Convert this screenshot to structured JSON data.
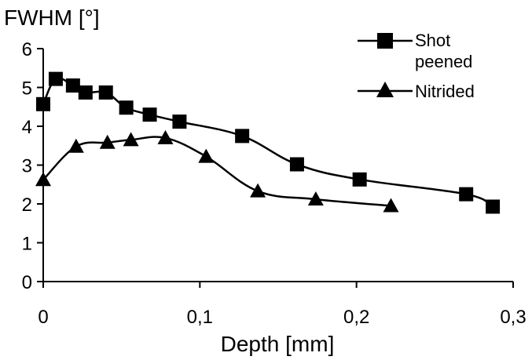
{
  "chart_data": {
    "type": "line",
    "ylabel": "FWHM [°]",
    "xlabel": "Depth [mm]",
    "xlim": [
      0,
      0.3
    ],
    "ylim": [
      0,
      6
    ],
    "x_ticks": [
      "0",
      "0,1",
      "0,2",
      "0,3"
    ],
    "y_ticks": [
      "0",
      "1",
      "2",
      "3",
      "4",
      "5",
      "6"
    ],
    "grid": false,
    "legend_position": "top-right",
    "legend": [
      {
        "label_lines": [
          "Shot",
          "peened"
        ],
        "marker": "square"
      },
      {
        "label_lines": [
          "Nitrided"
        ],
        "marker": "triangle"
      }
    ],
    "series": [
      {
        "name": "Shot peened",
        "marker": "square",
        "color": "#000000",
        "x": [
          0.0,
          0.008,
          0.019,
          0.027,
          0.04,
          0.053,
          0.068,
          0.087,
          0.127,
          0.162,
          0.202,
          0.27,
          0.287
        ],
        "y": [
          4.57,
          5.22,
          5.05,
          4.87,
          4.87,
          4.48,
          4.3,
          4.12,
          3.75,
          3.02,
          2.63,
          2.25,
          1.93
        ]
      },
      {
        "name": "Nitrided",
        "marker": "triangle",
        "color": "#000000",
        "x": [
          0.0,
          0.021,
          0.041,
          0.056,
          0.078,
          0.104,
          0.137,
          0.174,
          0.222
        ],
        "y": [
          2.62,
          3.48,
          3.58,
          3.65,
          3.7,
          3.22,
          2.33,
          2.12,
          1.95
        ]
      }
    ]
  }
}
